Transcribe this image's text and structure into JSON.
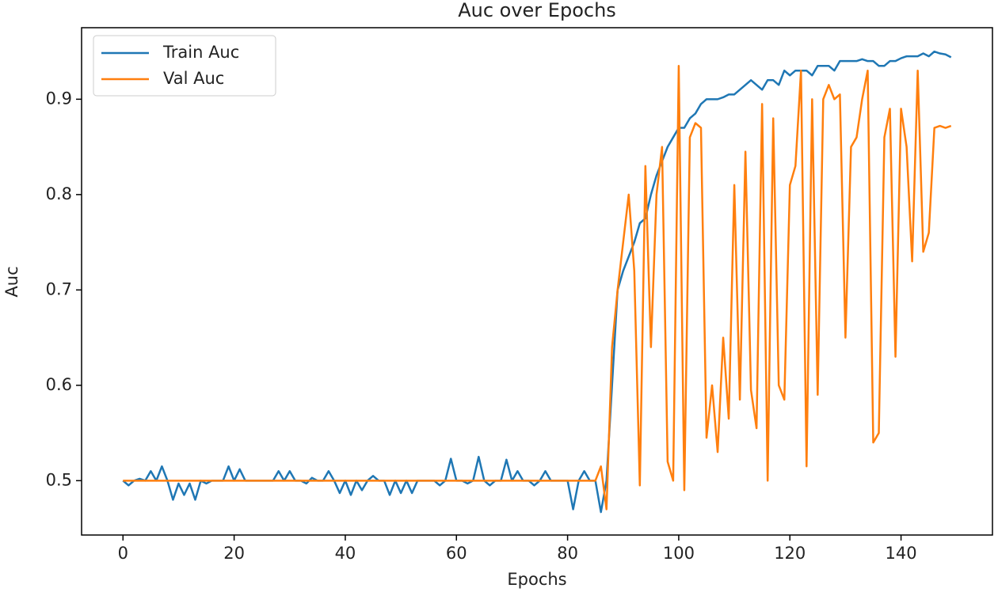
{
  "chart_data": {
    "type": "line",
    "title": "Auc over Epochs",
    "xlabel": "Epochs",
    "ylabel": "Auc",
    "xlim": [
      -7.45,
      156.45
    ],
    "ylim": [
      0.443,
      0.975
    ],
    "xticks": [
      0,
      20,
      40,
      60,
      80,
      100,
      120,
      140
    ],
    "yticks": [
      0.5,
      0.6,
      0.7,
      0.8,
      0.9
    ],
    "legend": "upper left",
    "series": [
      {
        "name": "Train Auc",
        "color": "#1f77b4",
        "values": [
          0.5,
          0.495,
          0.5,
          0.502,
          0.5,
          0.51,
          0.5,
          0.515,
          0.5,
          0.48,
          0.497,
          0.485,
          0.497,
          0.48,
          0.5,
          0.497,
          0.5,
          0.5,
          0.5,
          0.515,
          0.5,
          0.512,
          0.5,
          0.5,
          0.5,
          0.5,
          0.5,
          0.5,
          0.51,
          0.5,
          0.51,
          0.5,
          0.5,
          0.497,
          0.503,
          0.5,
          0.5,
          0.51,
          0.5,
          0.487,
          0.5,
          0.485,
          0.5,
          0.49,
          0.5,
          0.505,
          0.5,
          0.5,
          0.485,
          0.5,
          0.487,
          0.5,
          0.487,
          0.5,
          0.5,
          0.5,
          0.5,
          0.495,
          0.5,
          0.523,
          0.5,
          0.5,
          0.497,
          0.5,
          0.525,
          0.5,
          0.495,
          0.5,
          0.5,
          0.522,
          0.5,
          0.51,
          0.5,
          0.5,
          0.495,
          0.5,
          0.51,
          0.5,
          0.5,
          0.5,
          0.5,
          0.47,
          0.5,
          0.51,
          0.5,
          0.5,
          0.467,
          0.5,
          0.6,
          0.7,
          0.72,
          0.735,
          0.75,
          0.77,
          0.775,
          0.8,
          0.82,
          0.835,
          0.85,
          0.86,
          0.87,
          0.87,
          0.88,
          0.885,
          0.895,
          0.9,
          0.9,
          0.9,
          0.902,
          0.905,
          0.905,
          0.91,
          0.915,
          0.92,
          0.915,
          0.91,
          0.92,
          0.92,
          0.915,
          0.93,
          0.925,
          0.93,
          0.93,
          0.93,
          0.925,
          0.935,
          0.935,
          0.935,
          0.93,
          0.94,
          0.94,
          0.94,
          0.94,
          0.942,
          0.94,
          0.94,
          0.935,
          0.935,
          0.94,
          0.94,
          0.943,
          0.945,
          0.945,
          0.945,
          0.948,
          0.945,
          0.95,
          0.948,
          0.947,
          0.944
        ]
      },
      {
        "name": "Val Auc",
        "color": "#ff7f0e",
        "values": [
          0.5,
          0.5,
          0.5,
          0.5,
          0.5,
          0.5,
          0.5,
          0.5,
          0.5,
          0.5,
          0.5,
          0.5,
          0.5,
          0.5,
          0.5,
          0.5,
          0.5,
          0.5,
          0.5,
          0.5,
          0.5,
          0.5,
          0.5,
          0.5,
          0.5,
          0.5,
          0.5,
          0.5,
          0.5,
          0.5,
          0.5,
          0.5,
          0.5,
          0.5,
          0.5,
          0.5,
          0.5,
          0.5,
          0.5,
          0.5,
          0.5,
          0.5,
          0.5,
          0.5,
          0.5,
          0.5,
          0.5,
          0.5,
          0.5,
          0.5,
          0.5,
          0.5,
          0.5,
          0.5,
          0.5,
          0.5,
          0.5,
          0.5,
          0.5,
          0.5,
          0.5,
          0.5,
          0.5,
          0.5,
          0.5,
          0.5,
          0.5,
          0.5,
          0.5,
          0.5,
          0.5,
          0.5,
          0.5,
          0.5,
          0.5,
          0.5,
          0.5,
          0.5,
          0.5,
          0.5,
          0.5,
          0.5,
          0.5,
          0.5,
          0.5,
          0.5,
          0.515,
          0.47,
          0.64,
          0.7,
          0.75,
          0.8,
          0.72,
          0.495,
          0.83,
          0.64,
          0.8,
          0.85,
          0.52,
          0.5,
          0.935,
          0.49,
          0.86,
          0.875,
          0.87,
          0.545,
          0.6,
          0.53,
          0.65,
          0.565,
          0.81,
          0.585,
          0.845,
          0.595,
          0.555,
          0.895,
          0.5,
          0.88,
          0.6,
          0.585,
          0.81,
          0.83,
          0.93,
          0.515,
          0.9,
          0.59,
          0.9,
          0.915,
          0.9,
          0.905,
          0.65,
          0.85,
          0.86,
          0.9,
          0.93,
          0.54,
          0.55,
          0.86,
          0.89,
          0.63,
          0.89,
          0.85,
          0.73,
          0.93,
          0.74,
          0.76,
          0.87,
          0.872,
          0.87,
          0.872
        ]
      }
    ]
  }
}
